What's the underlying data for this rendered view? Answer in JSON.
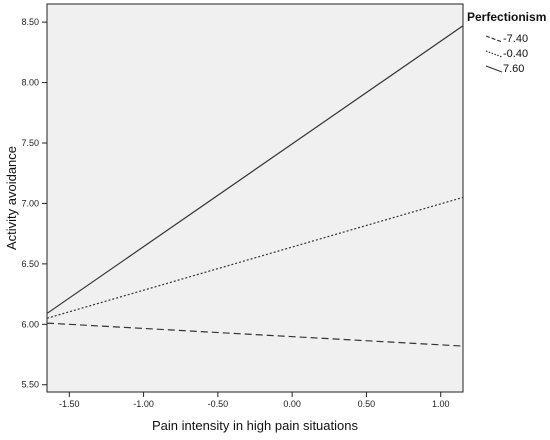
{
  "chart_data": {
    "type": "line",
    "xlabel": "Pain intensity in high pain situations",
    "ylabel": "Activity avoidance",
    "xlim": [
      -1.65,
      1.15
    ],
    "ylim": [
      5.44,
      8.65
    ],
    "x_ticks": [
      -1.5,
      -1.0,
      -0.5,
      0.0,
      0.5,
      1.0
    ],
    "x_tick_labels": [
      "-1.50",
      "-1.00",
      "-0.50",
      "0.00",
      "0.50",
      "1.00"
    ],
    "y_ticks": [
      5.5,
      6.0,
      6.5,
      7.0,
      7.5,
      8.0,
      8.5
    ],
    "y_tick_labels": [
      "5.50",
      "6.00",
      "6.50",
      "7.00",
      "7.50",
      "8.00",
      "8.50"
    ],
    "grid": false,
    "background": "#f0f0f0",
    "legend": {
      "title": "Perfectionism",
      "position": "top-right"
    },
    "series": [
      {
        "name": "-7.40",
        "style": "dashed",
        "x": [
          -1.65,
          1.15
        ],
        "y": [
          6.01,
          5.82
        ]
      },
      {
        "name": "-0.40",
        "style": "dotted",
        "x": [
          -1.65,
          1.15
        ],
        "y": [
          6.05,
          7.05
        ]
      },
      {
        "name": "7.60",
        "style": "solid",
        "x": [
          -1.65,
          1.15
        ],
        "y": [
          6.09,
          8.47
        ]
      }
    ]
  }
}
